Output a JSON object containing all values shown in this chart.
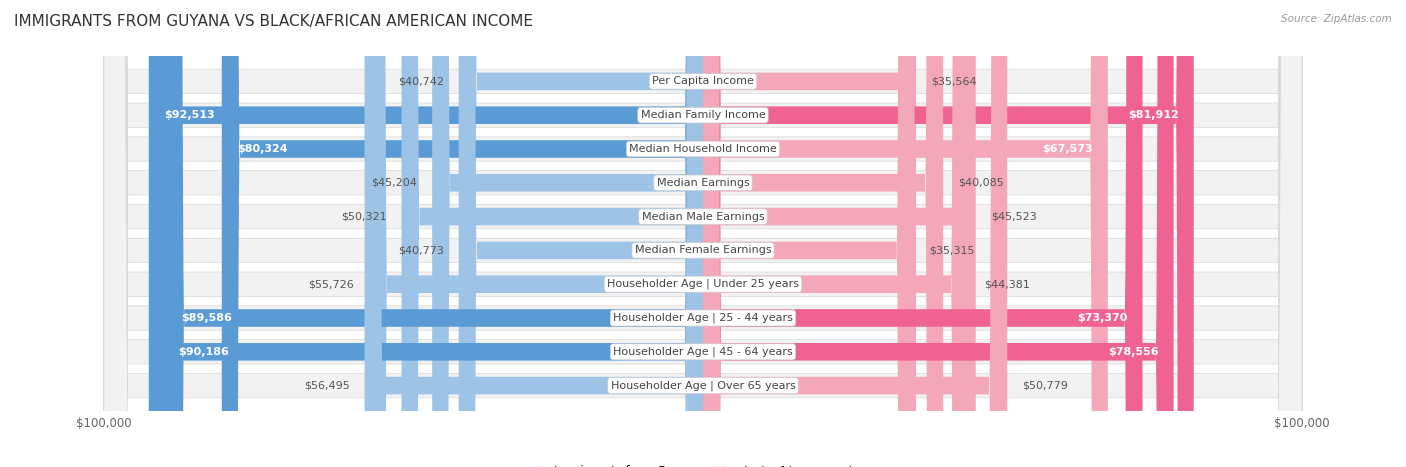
{
  "title": "IMMIGRANTS FROM GUYANA VS BLACK/AFRICAN AMERICAN INCOME",
  "source": "Source: ZipAtlas.com",
  "categories": [
    "Per Capita Income",
    "Median Family Income",
    "Median Household Income",
    "Median Earnings",
    "Median Male Earnings",
    "Median Female Earnings",
    "Householder Age | Under 25 years",
    "Householder Age | 25 - 44 years",
    "Householder Age | 45 - 64 years",
    "Householder Age | Over 65 years"
  ],
  "guyana_values": [
    40742,
    92513,
    80324,
    45204,
    50321,
    40773,
    55726,
    89586,
    90186,
    56495
  ],
  "black_values": [
    35564,
    81912,
    67573,
    40085,
    45523,
    35315,
    44381,
    73370,
    78556,
    50779
  ],
  "guyana_labels": [
    "$40,742",
    "$92,513",
    "$80,324",
    "$45,204",
    "$50,321",
    "$40,773",
    "$55,726",
    "$89,586",
    "$90,186",
    "$56,495"
  ],
  "black_labels": [
    "$35,564",
    "$81,912",
    "$67,573",
    "$40,085",
    "$45,523",
    "$35,315",
    "$44,381",
    "$73,370",
    "$78,556",
    "$50,779"
  ],
  "max_val": 100000,
  "guyana_color_dark": "#5b9bd5",
  "guyana_color_light": "#9dc3e6",
  "black_color_dark": "#f06292",
  "black_color_light": "#f4a7b9",
  "guyana_threshold": 70000,
  "black_threshold": 70000,
  "legend_guyana": "Immigrants from Guyana",
  "legend_black": "Black/African American",
  "background_color": "#ffffff",
  "row_bg_color": "#f2f2f2",
  "row_border_color": "#d8d8d8",
  "axis_label": "$100,000",
  "title_fontsize": 11,
  "label_fontsize": 8,
  "category_fontsize": 8,
  "source_fontsize": 7.5
}
